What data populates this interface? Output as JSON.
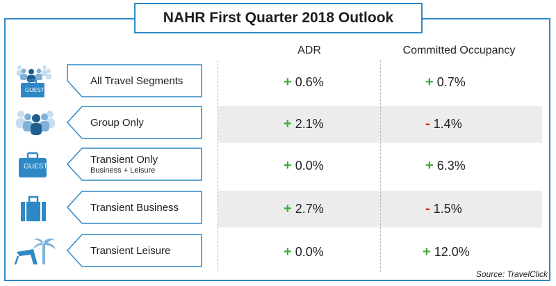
{
  "title": "NAHR First Quarter 2018 Outlook",
  "columns": {
    "adr": "ADR",
    "occupancy": "Committed Occupancy"
  },
  "rows": [
    {
      "label": "All Travel Segments",
      "sublabel": "",
      "icon": "group-and-suitcase-icon",
      "badge": "GUEST",
      "adr_sign": "+",
      "adr_value": "0.6%",
      "occ_sign": "+",
      "occ_value": "0.7%"
    },
    {
      "label": "Group Only",
      "sublabel": "",
      "icon": "people-group-icon",
      "badge": "",
      "adr_sign": "+",
      "adr_value": "2.1%",
      "occ_sign": "-",
      "occ_value": "1.4%"
    },
    {
      "label": "Transient Only",
      "sublabel": "Business + Leisure",
      "icon": "guest-suitcase-icon",
      "badge": "GUEST",
      "adr_sign": "+",
      "adr_value": "0.0%",
      "occ_sign": "+",
      "occ_value": "6.3%"
    },
    {
      "label": "Transient Business",
      "sublabel": "",
      "icon": "briefcase-icon",
      "badge": "",
      "adr_sign": "+",
      "adr_value": "2.7%",
      "occ_sign": "-",
      "occ_value": "1.5%"
    },
    {
      "label": "Transient Leisure",
      "sublabel": "",
      "icon": "beach-chair-palm-icon",
      "badge": "",
      "adr_sign": "+",
      "adr_value": "0.0%",
      "occ_sign": "+",
      "occ_value": "12.0%"
    }
  ],
  "source": "Source: TravelClick",
  "colors": {
    "frame": "#2f88c6",
    "icon": "#2f88c6",
    "positive": "#3daa3d",
    "negative": "#d02626",
    "stripe": "#ececec"
  }
}
